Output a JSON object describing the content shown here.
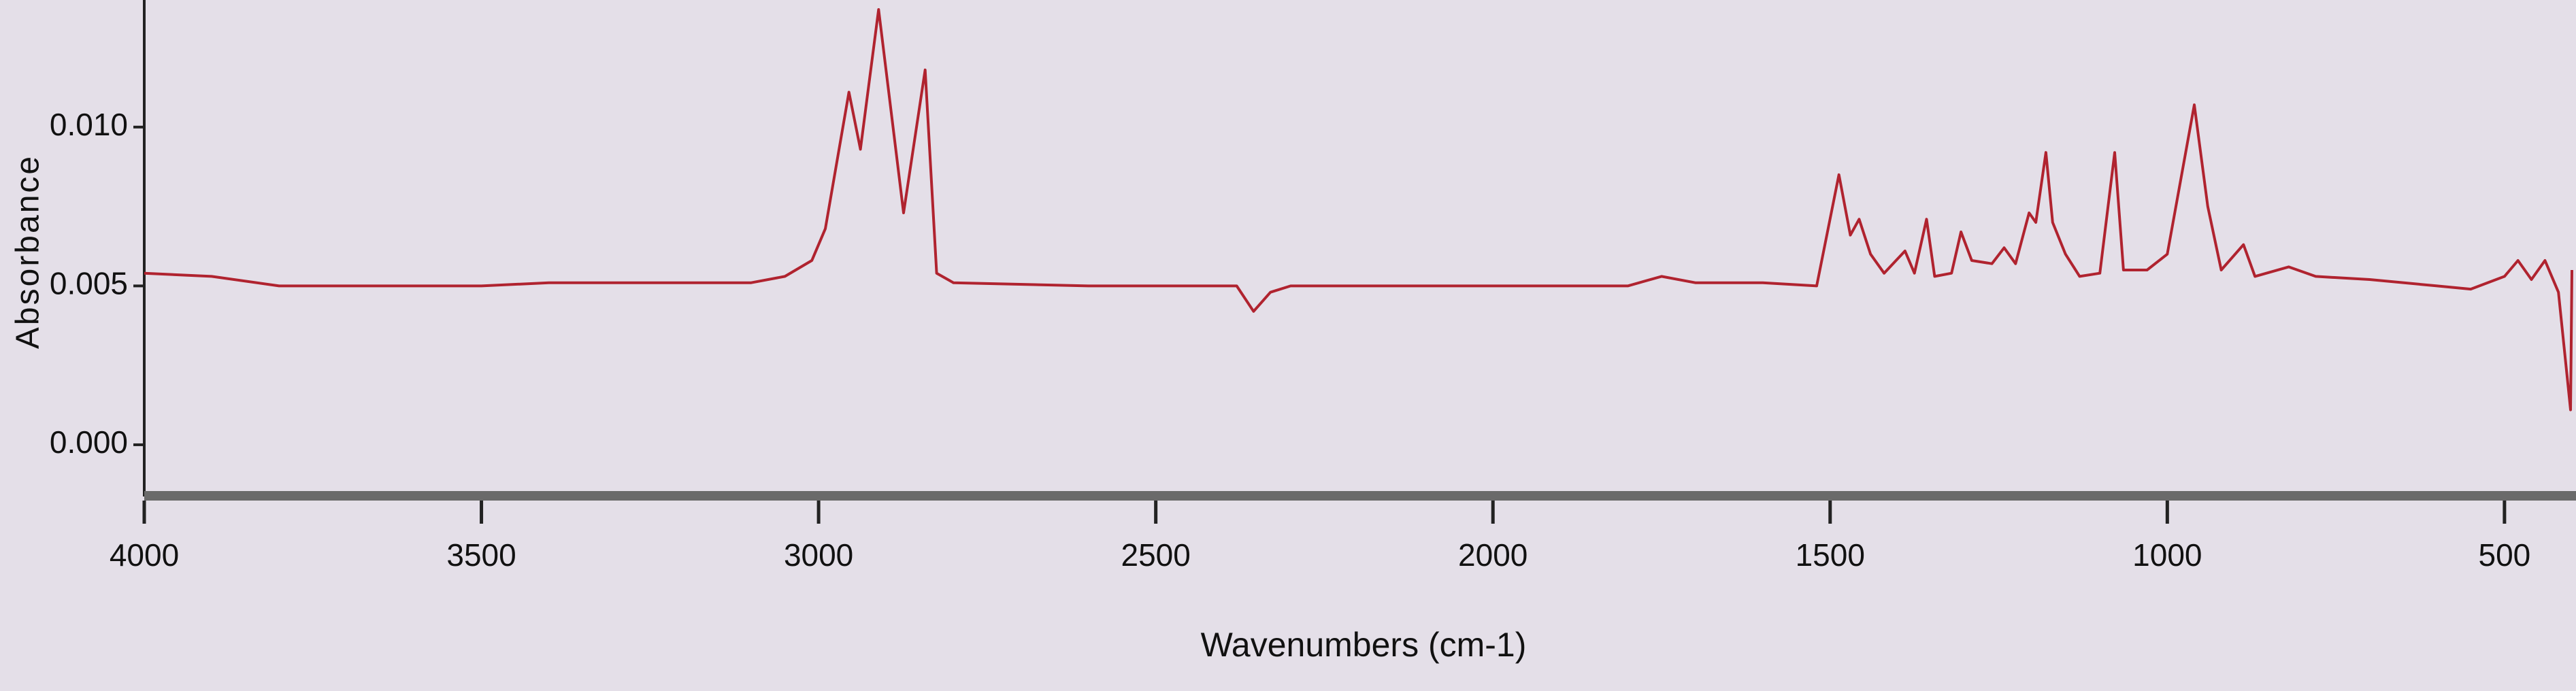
{
  "chart_data": {
    "type": "line",
    "xlabel": "Wavenumbers (cm-1)",
    "ylabel": "Absorbance",
    "x": [
      4000,
      3900,
      3800,
      3700,
      3600,
      3500,
      3400,
      3300,
      3200,
      3100,
      3050,
      3010,
      2990,
      2955,
      2938,
      2911,
      2874,
      2842,
      2825,
      2800,
      2600,
      2400,
      2380,
      2355,
      2330,
      2300,
      2000,
      1800,
      1750,
      1700,
      1600,
      1520,
      1487,
      1470,
      1457,
      1440,
      1420,
      1389,
      1375,
      1357,
      1345,
      1320,
      1306,
      1290,
      1260,
      1242,
      1225,
      1205,
      1195,
      1180,
      1170,
      1151,
      1130,
      1100,
      1078,
      1065,
      1030,
      1000,
      960,
      940,
      920,
      887,
      870,
      820,
      780,
      700,
      600,
      550,
      500,
      480,
      460,
      440,
      420,
      402,
      400
    ],
    "series": [
      {
        "color": "#b0232f",
        "values": [
          0.0054,
          0.0053,
          0.005,
          0.005,
          0.005,
          0.005,
          0.0051,
          0.0051,
          0.0051,
          0.0051,
          0.0053,
          0.0058,
          0.0068,
          0.0111,
          0.0093,
          0.0137,
          0.0073,
          0.0118,
          0.0054,
          0.0051,
          0.005,
          0.005,
          0.005,
          0.0042,
          0.0048,
          0.005,
          0.005,
          0.005,
          0.0053,
          0.0051,
          0.0051,
          0.005,
          0.0085,
          0.0066,
          0.0071,
          0.006,
          0.0054,
          0.0061,
          0.0054,
          0.0071,
          0.0053,
          0.0054,
          0.0067,
          0.0058,
          0.0057,
          0.0062,
          0.0057,
          0.0073,
          0.007,
          0.0092,
          0.007,
          0.006,
          0.0053,
          0.0054,
          0.0092,
          0.0055,
          0.0055,
          0.006,
          0.0107,
          0.0075,
          0.0055,
          0.0063,
          0.0053,
          0.0056,
          0.0053,
          0.0052,
          0.005,
          0.0049,
          0.0053,
          0.0058,
          0.0052,
          0.0058,
          0.0048,
          0.0011,
          0.0055
        ]
      }
    ],
    "xlim": [
      4000,
      400
    ],
    "xticks": [
      4000,
      3500,
      3000,
      2500,
      2000,
      1500,
      1000,
      500
    ],
    "ylim": [
      -0.0015,
      0.014
    ],
    "yticks": [
      {
        "value": 0,
        "label": "0.000"
      },
      0.005,
      {
        "value": 0.01,
        "label": "0.010"
      }
    ]
  }
}
